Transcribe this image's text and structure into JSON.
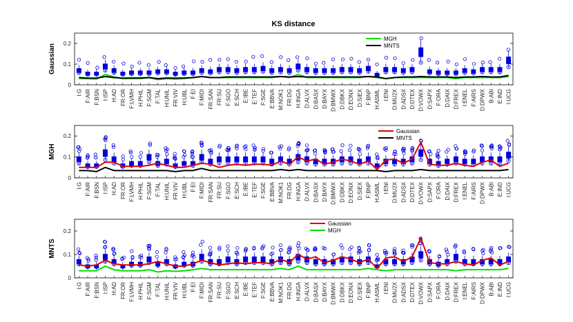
{
  "figure_title": "KS distance",
  "categories": [
    "I:G",
    "F:AIR",
    "F:BSN",
    "I:ISP",
    "H:AD",
    "FR:OR",
    "F:LVMH",
    "H:PHIL",
    "F:SGM",
    "F:TAL",
    "H:UNIL",
    "FR:VIV",
    "H:UBL",
    "F:EI",
    "F:MIDI",
    "FR:SAN",
    "FR:SU",
    "F:SGO",
    "E:SCH",
    "E:IBE",
    "E:TEF",
    "F:SGE",
    "E:BBVA",
    "M:NOK1",
    "FR:DG",
    "H:INGA",
    "D:ALVX",
    "D:BASX",
    "D:BAYX",
    "D:BMWX",
    "D:DBKX",
    "D:EONX",
    "D:SIEX",
    "F:BNP",
    "H:ASML",
    "I:ENI",
    "D:MU2X",
    "D:ADSX",
    "D:DTEX",
    "D:VOWX",
    "D:SAPX",
    "F:ORA",
    "D:DAIX",
    "D:FREX",
    "I:ENEL",
    "F:AIRS",
    "D:DPWX",
    "B:ABI",
    "E:IND",
    "I:UCG"
  ],
  "chart_data": [
    {
      "type": "box",
      "panel": "gaussian",
      "title": "KS distance",
      "ylabel": "Gaussian",
      "ylim": [
        0,
        0.25
      ],
      "yticks": [
        0,
        0.1,
        0.2
      ],
      "legend": [
        {
          "name": "MGH",
          "color": "#00dd00"
        },
        {
          "name": "MNTS",
          "color": "#000000"
        }
      ],
      "legend_position": "top-center",
      "box_median": [
        0.07,
        0.055,
        0.055,
        0.09,
        0.07,
        0.055,
        0.06,
        0.06,
        0.06,
        0.065,
        0.065,
        0.055,
        0.06,
        0.06,
        0.07,
        0.065,
        0.075,
        0.075,
        0.07,
        0.075,
        0.075,
        0.08,
        0.07,
        0.075,
        0.07,
        0.09,
        0.075,
        0.07,
        0.07,
        0.07,
        0.075,
        0.075,
        0.07,
        0.08,
        0.05,
        0.075,
        0.075,
        0.07,
        0.075,
        0.16,
        0.065,
        0.06,
        0.06,
        0.06,
        0.07,
        0.065,
        0.075,
        0.075,
        0.075,
        0.12
      ],
      "series": [
        {
          "name": "MGH",
          "color": "#00dd00",
          "values": [
            0.03,
            0.03,
            0.028,
            0.05,
            0.038,
            0.03,
            0.03,
            0.03,
            0.035,
            0.025,
            0.03,
            0.028,
            0.03,
            0.035,
            0.04,
            0.035,
            0.035,
            0.035,
            0.035,
            0.035,
            0.035,
            0.035,
            0.035,
            0.04,
            0.035,
            0.05,
            0.035,
            0.035,
            0.035,
            0.035,
            0.035,
            0.035,
            0.035,
            0.04,
            0.035,
            0.03,
            0.035,
            0.035,
            0.035,
            0.035,
            0.035,
            0.035,
            0.035,
            0.03,
            0.035,
            0.035,
            0.035,
            0.035,
            0.035,
            0.04
          ]
        },
        {
          "name": "MNTS",
          "color": "#000000",
          "values": [
            0.035,
            0.032,
            0.032,
            0.04,
            0.035,
            0.032,
            0.033,
            0.033,
            0.035,
            0.03,
            0.033,
            0.032,
            0.033,
            0.035,
            0.04,
            0.035,
            0.035,
            0.038,
            0.038,
            0.038,
            0.038,
            0.038,
            0.038,
            0.04,
            0.038,
            0.04,
            0.038,
            0.038,
            0.038,
            0.038,
            0.038,
            0.038,
            0.038,
            0.04,
            0.038,
            0.03,
            0.035,
            0.038,
            0.038,
            0.04,
            0.038,
            0.038,
            0.038,
            0.035,
            0.038,
            0.038,
            0.04,
            0.038,
            0.038,
            0.045
          ]
        }
      ]
    },
    {
      "type": "box",
      "panel": "mgh",
      "ylabel": "MGH",
      "ylim": [
        0,
        0.25
      ],
      "yticks": [
        0,
        0.1,
        0.2
      ],
      "legend": [
        {
          "name": "Gaussian",
          "color": "#dd0000"
        },
        {
          "name": "MNTS",
          "color": "#000000"
        }
      ],
      "legend_position": "top-center",
      "box_median": [
        0.09,
        0.06,
        0.06,
        0.12,
        0.09,
        0.06,
        0.07,
        0.07,
        0.1,
        0.07,
        0.08,
        0.06,
        0.07,
        0.07,
        0.1,
        0.08,
        0.09,
        0.09,
        0.09,
        0.09,
        0.09,
        0.09,
        0.08,
        0.09,
        0.08,
        0.1,
        0.09,
        0.08,
        0.08,
        0.08,
        0.09,
        0.09,
        0.08,
        0.09,
        0.06,
        0.08,
        0.08,
        0.08,
        0.09,
        0.12,
        0.08,
        0.07,
        0.08,
        0.09,
        0.08,
        0.08,
        0.09,
        0.09,
        0.09,
        0.11
      ],
      "series": [
        {
          "name": "Gaussian",
          "color": "#dd0000",
          "values": [
            0.05,
            0.05,
            0.05,
            0.075,
            0.075,
            0.055,
            0.055,
            0.055,
            0.06,
            0.07,
            0.06,
            0.05,
            0.05,
            0.06,
            0.07,
            0.065,
            0.05,
            0.06,
            0.065,
            0.06,
            0.065,
            0.065,
            0.06,
            0.08,
            0.065,
            0.1,
            0.08,
            0.09,
            0.065,
            0.075,
            0.09,
            0.08,
            0.065,
            0.08,
            0.04,
            0.085,
            0.09,
            0.07,
            0.09,
            0.17,
            0.065,
            0.06,
            0.06,
            0.07,
            0.06,
            0.055,
            0.075,
            0.085,
            0.055,
            0.07
          ]
        },
        {
          "name": "MNTS",
          "color": "#000000",
          "values": [
            0.035,
            0.035,
            0.03,
            0.05,
            0.035,
            0.035,
            0.035,
            0.035,
            0.035,
            0.035,
            0.035,
            0.03,
            0.035,
            0.035,
            0.045,
            0.035,
            0.035,
            0.035,
            0.035,
            0.035,
            0.035,
            0.035,
            0.035,
            0.04,
            0.035,
            0.04,
            0.035,
            0.035,
            0.035,
            0.035,
            0.035,
            0.035,
            0.035,
            0.035,
            0.035,
            0.03,
            0.035,
            0.035,
            0.035,
            0.04,
            0.035,
            0.035,
            0.035,
            0.035,
            0.035,
            0.035,
            0.035,
            0.035,
            0.035,
            0.04
          ]
        }
      ]
    },
    {
      "type": "box",
      "panel": "mnts",
      "ylabel": "MNTS",
      "ylim": [
        0,
        0.25
      ],
      "yticks": [
        0,
        0.1,
        0.2
      ],
      "legend": [
        {
          "name": "Gaussian",
          "color": "#dd0000"
        },
        {
          "name": "MGH",
          "color": "#00dd00"
        }
      ],
      "legend_position": "top-center",
      "box_median": [
        0.07,
        0.05,
        0.05,
        0.09,
        0.07,
        0.05,
        0.06,
        0.06,
        0.08,
        0.06,
        0.07,
        0.05,
        0.06,
        0.06,
        0.09,
        0.07,
        0.07,
        0.08,
        0.07,
        0.08,
        0.08,
        0.08,
        0.07,
        0.08,
        0.07,
        0.09,
        0.08,
        0.07,
        0.07,
        0.07,
        0.08,
        0.08,
        0.07,
        0.08,
        0.05,
        0.07,
        0.07,
        0.07,
        0.08,
        0.1,
        0.07,
        0.06,
        0.07,
        0.09,
        0.07,
        0.07,
        0.07,
        0.07,
        0.07,
        0.08
      ],
      "series": [
        {
          "name": "Gaussian",
          "color": "#dd0000",
          "values": [
            0.055,
            0.05,
            0.055,
            0.075,
            0.06,
            0.055,
            0.055,
            0.055,
            0.06,
            0.07,
            0.06,
            0.05,
            0.05,
            0.06,
            0.075,
            0.065,
            0.055,
            0.06,
            0.065,
            0.06,
            0.065,
            0.065,
            0.06,
            0.08,
            0.065,
            0.1,
            0.08,
            0.09,
            0.065,
            0.075,
            0.09,
            0.08,
            0.065,
            0.08,
            0.04,
            0.085,
            0.09,
            0.07,
            0.09,
            0.17,
            0.065,
            0.06,
            0.06,
            0.07,
            0.06,
            0.055,
            0.075,
            0.085,
            0.055,
            0.07
          ]
        },
        {
          "name": "MGH",
          "color": "#00dd00",
          "values": [
            0.03,
            0.03,
            0.03,
            0.05,
            0.035,
            0.03,
            0.03,
            0.03,
            0.035,
            0.025,
            0.03,
            0.028,
            0.03,
            0.035,
            0.04,
            0.035,
            0.035,
            0.035,
            0.035,
            0.035,
            0.035,
            0.035,
            0.035,
            0.04,
            0.035,
            0.05,
            0.035,
            0.035,
            0.035,
            0.035,
            0.035,
            0.035,
            0.035,
            0.04,
            0.035,
            0.03,
            0.035,
            0.035,
            0.035,
            0.035,
            0.035,
            0.035,
            0.035,
            0.03,
            0.035,
            0.035,
            0.035,
            0.035,
            0.035,
            0.04
          ]
        }
      ]
    }
  ],
  "colors": {
    "box": "#0000dd",
    "axis": "#000000"
  }
}
